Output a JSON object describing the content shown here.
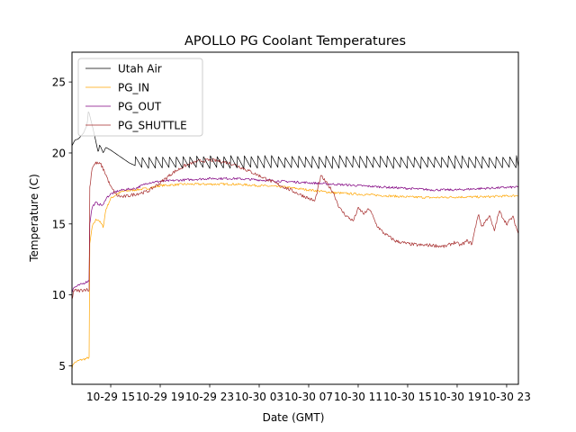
{
  "chart_data": {
    "type": "line",
    "title": "APOLLO PG Coolant Temperatures",
    "xlabel": "Date (GMT)",
    "ylabel": "Temperature (C)",
    "x_unit": "hours since 10-29 00:00 GMT",
    "xlim": [
      11.87,
      47.95
    ],
    "ylim": [
      3.7,
      27.1
    ],
    "xticks": [
      {
        "value": 15,
        "label": "10-29 15"
      },
      {
        "value": 19,
        "label": "10-29 19"
      },
      {
        "value": 23,
        "label": "10-29 23"
      },
      {
        "value": 27,
        "label": "10-30 03"
      },
      {
        "value": 31,
        "label": "10-30 07"
      },
      {
        "value": 35,
        "label": "10-30 11"
      },
      {
        "value": 39,
        "label": "10-30 15"
      },
      {
        "value": 43,
        "label": "10-30 19"
      },
      {
        "value": 47,
        "label": "10-30 23"
      }
    ],
    "yticks": [
      {
        "value": 5,
        "label": "5"
      },
      {
        "value": 10,
        "label": "10"
      },
      {
        "value": 15,
        "label": "15"
      },
      {
        "value": 20,
        "label": "20"
      },
      {
        "value": 25,
        "label": "25"
      }
    ],
    "grid": false,
    "legend_position": "upper-left",
    "series": [
      {
        "name": "Utah Air",
        "color": "#000000",
        "x": [
          11.87,
          12.1,
          12.4,
          12.8,
          13.1,
          13.2,
          13.6,
          14.0,
          14.1,
          14.4,
          14.6,
          15.0,
          15.5,
          16.0,
          16.5,
          17.0
        ],
        "y": [
          20.5,
          20.9,
          21.0,
          21.4,
          22.0,
          23.0,
          21.6,
          20.0,
          20.6,
          20.0,
          20.4,
          20.2,
          19.9,
          19.6,
          19.3,
          19.1
        ],
        "sawtooth": {
          "start": 17.0,
          "end": 47.95,
          "period": 0.55,
          "low": 18.95,
          "high": 19.75
        }
      },
      {
        "name": "PG_IN",
        "color": "#FFA500",
        "x": [
          11.87,
          12.0,
          12.5,
          13.0,
          13.25,
          13.3,
          13.5,
          13.8,
          14.0,
          14.4,
          14.6,
          15.0,
          15.5,
          16.0,
          17.0,
          18.0,
          19.0,
          21.0,
          23.0,
          25.0,
          27.0,
          29.0,
          31.0,
          33.0,
          35.0,
          37.0,
          39.0,
          41.0,
          43.0,
          45.0,
          47.95
        ],
        "y": [
          4.8,
          5.2,
          5.4,
          5.5,
          5.6,
          13.5,
          14.8,
          15.3,
          15.3,
          14.8,
          16.0,
          16.8,
          17.1,
          17.3,
          17.4,
          17.5,
          17.7,
          17.8,
          17.8,
          17.8,
          17.7,
          17.6,
          17.4,
          17.2,
          17.1,
          17.0,
          16.9,
          16.85,
          16.9,
          16.9,
          17.0
        ],
        "noise": 0.08
      },
      {
        "name": "PG_OUT",
        "color": "#800080",
        "x": [
          11.87,
          12.0,
          12.5,
          13.0,
          13.25,
          13.3,
          13.5,
          13.8,
          14.0,
          14.4,
          14.6,
          15.0,
          15.5,
          16.0,
          17.0,
          18.0,
          19.0,
          21.0,
          23.0,
          25.0,
          27.0,
          29.0,
          31.0,
          33.0,
          35.0,
          37.0,
          39.0,
          41.0,
          43.0,
          45.0,
          47.95
        ],
        "y": [
          10.2,
          10.5,
          10.7,
          10.9,
          11.0,
          15.0,
          16.2,
          16.5,
          16.4,
          16.3,
          16.8,
          17.1,
          17.3,
          17.4,
          17.5,
          17.9,
          18.0,
          18.1,
          18.2,
          18.2,
          18.1,
          18.0,
          17.9,
          17.8,
          17.7,
          17.6,
          17.5,
          17.4,
          17.4,
          17.5,
          17.6
        ],
        "noise": 0.08
      },
      {
        "name": "PG_SHUTTLE",
        "color": "#A52A2A",
        "x": [
          11.87,
          12.0,
          12.5,
          13.0,
          13.25,
          13.3,
          13.5,
          13.8,
          14.2,
          14.6,
          15.0,
          15.5,
          16.0,
          16.5,
          17.0,
          18.0,
          19.0,
          20.0,
          21.0,
          22.0,
          23.0,
          24.0,
          25.0,
          26.0,
          27.0,
          28.0,
          29.0,
          30.0,
          31.0,
          31.5,
          32.0,
          32.6,
          33.0,
          33.5,
          34.0,
          34.6,
          35.0,
          35.5,
          35.9,
          36.5,
          37.0,
          37.5,
          38.0,
          39.0,
          40.0,
          41.0,
          42.0,
          42.8,
          43.3,
          43.8,
          44.2,
          44.7,
          45.0,
          45.6,
          46.0,
          46.4,
          47.0,
          47.5,
          47.95
        ],
        "y": [
          9.6,
          10.3,
          10.3,
          10.4,
          10.3,
          17.5,
          19.0,
          19.3,
          19.2,
          18.5,
          17.6,
          17.0,
          16.9,
          17.0,
          17.1,
          17.3,
          17.9,
          18.6,
          19.1,
          19.4,
          19.5,
          19.4,
          19.2,
          18.8,
          18.4,
          18.0,
          17.6,
          17.2,
          16.8,
          16.6,
          18.4,
          17.7,
          17.2,
          16.1,
          15.6,
          15.2,
          16.1,
          15.7,
          16.1,
          14.9,
          14.4,
          14.1,
          13.8,
          13.6,
          13.5,
          13.5,
          13.4,
          13.7,
          13.5,
          13.8,
          13.6,
          15.7,
          14.8,
          15.6,
          14.5,
          15.9,
          15.0,
          15.5,
          14.3
        ],
        "noise": 0.12
      }
    ]
  }
}
